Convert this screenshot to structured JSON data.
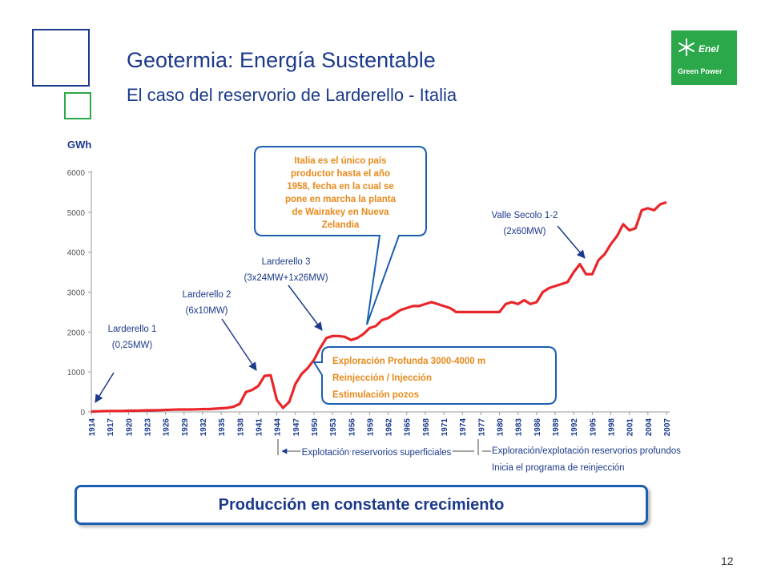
{
  "slide": {
    "title": "Geotermia: Energía Sustentable",
    "subtitle": "El caso del reservorio de Larderello - Italia",
    "page_number": "12",
    "logo": {
      "brand": "Enel",
      "tagline": "Green Power"
    },
    "banner": "Producción en constante crecimiento",
    "colors": {
      "navy": "#1b3a8c",
      "green": "#2aa84a",
      "series": "#e8262a",
      "box_border": "#1b5fb0",
      "box_text": "#e8891a"
    }
  },
  "chart_data": {
    "type": "line",
    "ylabel": "GWh",
    "ylim": [
      0,
      6000
    ],
    "xlim": [
      1914,
      2007
    ],
    "yticks": [
      0,
      1000,
      2000,
      3000,
      4000,
      5000,
      6000
    ],
    "xticks": [
      "1914",
      "1917",
      "1920",
      "1923",
      "1926",
      "1929",
      "1932",
      "1935",
      "1938",
      "1941",
      "1944",
      "1947",
      "1950",
      "1953",
      "1956",
      "1959",
      "1962",
      "1965",
      "1968",
      "1971",
      "1974",
      "1977",
      "1980",
      "1983",
      "1986",
      "1989",
      "1992",
      "1995",
      "1998",
      "2001",
      "2004",
      "2007"
    ],
    "x": [
      1914,
      1915,
      1916,
      1917,
      1918,
      1919,
      1920,
      1921,
      1922,
      1923,
      1924,
      1925,
      1926,
      1927,
      1928,
      1929,
      1930,
      1931,
      1932,
      1933,
      1934,
      1935,
      1936,
      1937,
      1938,
      1939,
      1940,
      1941,
      1942,
      1943,
      1944,
      1945,
      1946,
      1947,
      1948,
      1949,
      1950,
      1951,
      1952,
      1953,
      1954,
      1955,
      1956,
      1957,
      1958,
      1959,
      1960,
      1961,
      1962,
      1963,
      1964,
      1965,
      1966,
      1967,
      1968,
      1969,
      1970,
      1971,
      1972,
      1973,
      1974,
      1975,
      1976,
      1977,
      1978,
      1979,
      1980,
      1981,
      1982,
      1983,
      1984,
      1985,
      1986,
      1987,
      1988,
      1989,
      1990,
      1991,
      1992,
      1993,
      1994,
      1995,
      1996,
      1997,
      1998,
      1999,
      2000,
      2001,
      2002,
      2003,
      2004,
      2005,
      2006,
      2007
    ],
    "values": [
      10,
      15,
      20,
      25,
      25,
      25,
      30,
      30,
      35,
      40,
      40,
      45,
      50,
      55,
      60,
      60,
      60,
      65,
      70,
      70,
      80,
      90,
      100,
      130,
      200,
      500,
      550,
      650,
      900,
      920,
      300,
      100,
      250,
      700,
      950,
      1100,
      1300,
      1600,
      1850,
      1900,
      1900,
      1880,
      1800,
      1850,
      1950,
      2100,
      2150,
      2300,
      2350,
      2450,
      2550,
      2600,
      2650,
      2650,
      2700,
      2750,
      2700,
      2650,
      2600,
      2500,
      2500,
      2500,
      2500,
      2500,
      2500,
      2500,
      2500,
      2700,
      2750,
      2700,
      2800,
      2700,
      2750,
      3000,
      3100,
      3150,
      3200,
      3250,
      3500,
      3700,
      3450,
      3450,
      3800,
      3950,
      4200,
      4400,
      4700,
      4550,
      4600,
      5050,
      5100,
      5050,
      5200,
      5250
    ],
    "annotations": {
      "larderello1": [
        "Larderello 1",
        "(0,25MW)"
      ],
      "larderello2": [
        "Larderello 2",
        "(6x10MW)"
      ],
      "larderello3": [
        "Larderello 3",
        "(3x24MW+1x26MW)"
      ],
      "valle_secolo": [
        "Valle Secolo 1-2",
        "(2x60MW)"
      ],
      "callout_italia": [
        "Italia es el único país",
        "productor hasta el año",
        "1958, fecha en la cual se",
        "pone en marcha la planta",
        "de Wairakey en Nueva",
        "Zelandia"
      ],
      "box_exploracion": [
        "Exploración Profunda 3000-4000 m",
        "Reinjección / Injección",
        "Estimulación pozos"
      ],
      "explotacion_superficial": "Explotación reservorios superficiales",
      "explotacion_profunda": "Exploración/explotación reservorios profundos",
      "reinjeccion": "Inicia el programa de reinjección"
    }
  }
}
